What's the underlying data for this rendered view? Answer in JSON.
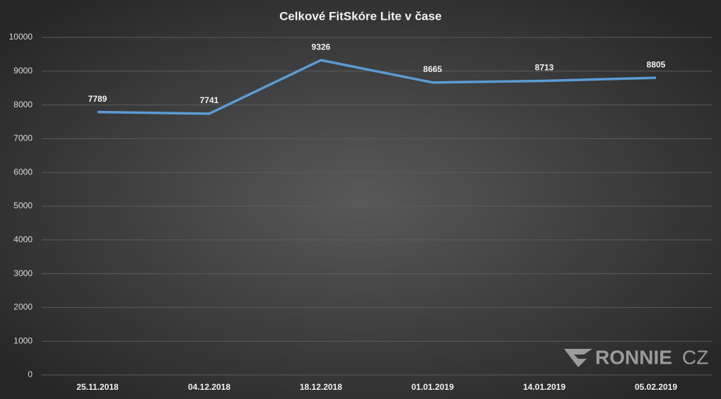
{
  "chart_data": {
    "type": "line",
    "title": "Celkové FitSkóre Lite v čase",
    "categories": [
      "25.11.2018",
      "04.12.2018",
      "18.12.2018",
      "01.01.2019",
      "14.01.2019",
      "05.02.2019"
    ],
    "series": [
      {
        "name": "Celkové FitSkóre Lite",
        "color": "#5b9bd5",
        "values": [
          7789,
          7741,
          9326,
          8665,
          8713,
          8805
        ]
      }
    ],
    "ylim": [
      0,
      10000
    ],
    "yticks": [
      0,
      1000,
      2000,
      3000,
      4000,
      5000,
      6000,
      7000,
      8000,
      9000,
      10000
    ],
    "grid": true,
    "watermark": [
      "RONNIE",
      "CZ"
    ]
  }
}
